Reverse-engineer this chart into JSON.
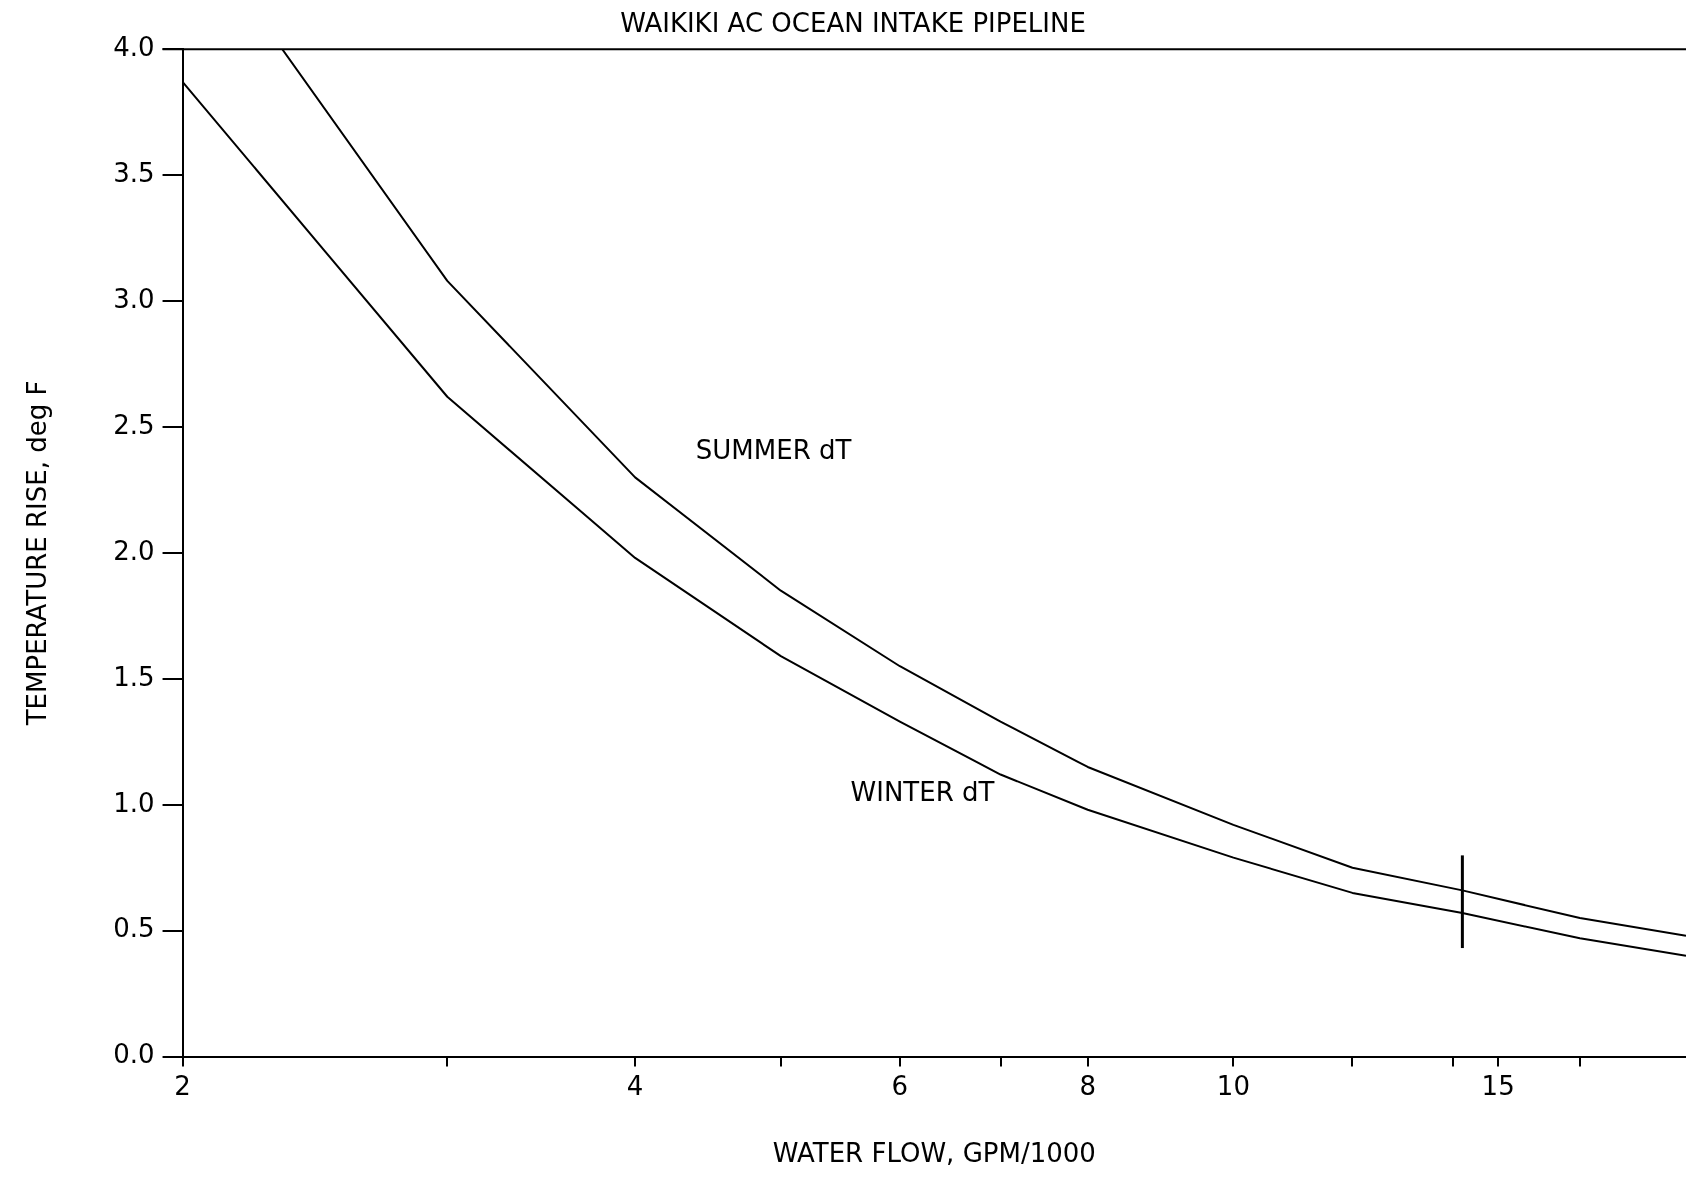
{
  "chart_data": {
    "type": "line",
    "title": "WAIKIKI AC OCEAN INTAKE PIPELINE",
    "xlabel": "WATER FLOW, GPM/1000",
    "ylabel": "TEMPERATURE RISE, deg F",
    "log": "x",
    "xlim": [
      2,
      20
    ],
    "ylim": [
      0,
      4
    ],
    "xticks": [
      2,
      {
        "value": 3,
        "label": null
      },
      4,
      {
        "value": 5,
        "label": null
      },
      6,
      {
        "value": 7,
        "label": null
      },
      8,
      10,
      {
        "value": 12,
        "label": null
      },
      {
        "value": 14,
        "label": null
      },
      15,
      {
        "value": 17,
        "label": null
      }
    ],
    "yticks": [
      {
        "value": 0,
        "label": "0.0"
      },
      {
        "value": 0.5,
        "label": "0.5"
      },
      {
        "value": 1,
        "label": "1.0"
      },
      {
        "value": 1.5,
        "label": "1.5"
      },
      {
        "value": 2,
        "label": "2.0"
      },
      {
        "value": 2.5,
        "label": "2.5"
      },
      {
        "value": 3,
        "label": "3.0"
      },
      {
        "value": 3.5,
        "label": "3.5"
      },
      {
        "value": 4,
        "label": "4.0"
      }
    ],
    "grid": false,
    "legend": false,
    "marker": "none",
    "line_style": "solid",
    "ref_lines": [
      {
        "axis": "x",
        "value": 14.2,
        "color": "#000000"
      }
    ],
    "series": [
      {
        "name": "SUMMER dT",
        "color": "#000000",
        "x": [
          2.33,
          3,
          4,
          5,
          6,
          7,
          8,
          10,
          12,
          14.2,
          17,
          20
        ],
        "values": [
          4.0,
          3.08,
          2.3,
          1.85,
          1.55,
          1.33,
          1.15,
          0.92,
          0.75,
          0.66,
          0.55,
          0.48
        ]
      },
      {
        "name": "WINTER dT",
        "color": "#000000",
        "x": [
          2,
          3,
          4,
          5,
          6,
          7,
          8,
          10,
          12,
          14.2,
          17,
          20
        ],
        "values": [
          3.87,
          2.62,
          1.98,
          1.59,
          1.33,
          1.12,
          0.98,
          0.79,
          0.65,
          0.57,
          0.47,
          0.4
        ]
      }
    ]
  }
}
